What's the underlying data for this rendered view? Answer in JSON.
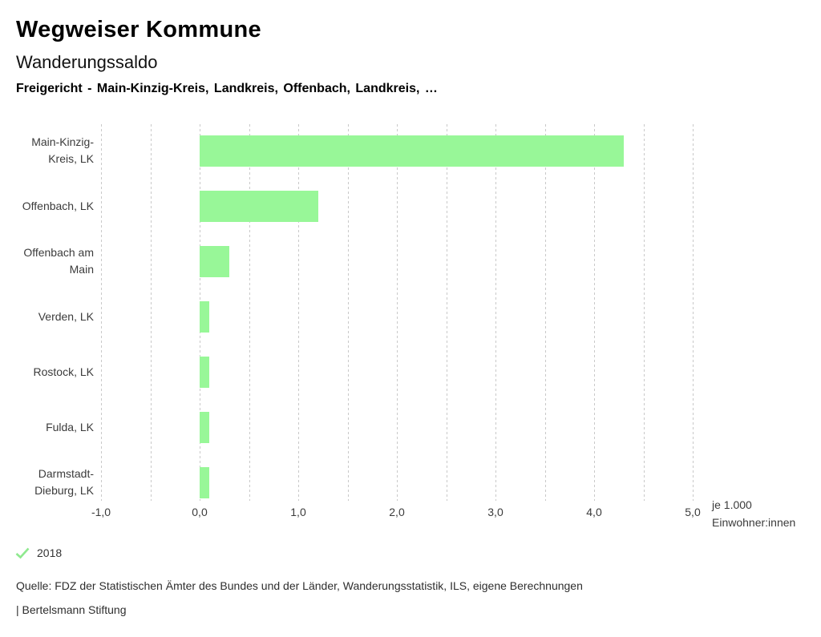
{
  "header": {
    "title": "Wegweiser Kommune"
  },
  "chart_data": {
    "type": "bar",
    "orientation": "horizontal",
    "title": "Wanderungssaldo",
    "subtitle": "Freigericht - Main-Kinzig-Kreis, Landkreis, Offenbach, Landkreis, …",
    "categories": [
      "Main-Kinzig-Kreis, LK",
      "Offenbach, LK",
      "Offenbach am Main",
      "Verden, LK",
      "Rostock, LK",
      "Fulda, LK",
      "Darmstadt-Dieburg, LK"
    ],
    "category_display_lines": [
      [
        "Main-Kinzig-",
        "Kreis, LK"
      ],
      [
        "Offenbach, LK"
      ],
      [
        "Offenbach am",
        "Main"
      ],
      [
        "Verden, LK"
      ],
      [
        "Rostock, LK"
      ],
      [
        "Fulda, LK"
      ],
      [
        "Darmstadt-",
        "Dieburg, LK"
      ]
    ],
    "series": [
      {
        "name": "2018",
        "values": [
          4.3,
          1.2,
          0.3,
          0.1,
          0.1,
          0.1,
          0.1
        ],
        "color": "#98f798"
      }
    ],
    "xlabel": "je 1.000 Einwohner:innen",
    "xlabel_lines": [
      "je 1.000",
      "Einwohner:innen"
    ],
    "xlim": [
      -1.0,
      5.0
    ],
    "x_ticks": [
      {
        "value": -1,
        "label": "-1,0"
      },
      {
        "value": 0,
        "label": "0,0"
      },
      {
        "value": 1,
        "label": "1,0"
      },
      {
        "value": 2,
        "label": "2,0"
      },
      {
        "value": 3,
        "label": "3,0"
      },
      {
        "value": 4,
        "label": "4,0"
      },
      {
        "value": 5,
        "label": "5,0"
      }
    ],
    "grid": true,
    "grid_step": 0.5,
    "grid_color": "#c9c9c9",
    "legend_position": "bottom-left"
  },
  "legend": {
    "items": [
      {
        "label": "2018",
        "check_color": "#8fe98f"
      }
    ]
  },
  "footer": {
    "source": "Quelle: FDZ der Statistischen Ämter des Bundes und der Länder, Wanderungsstatistik, ILS, eigene Berechnungen",
    "branding": "| Bertelsmann Stiftung"
  }
}
